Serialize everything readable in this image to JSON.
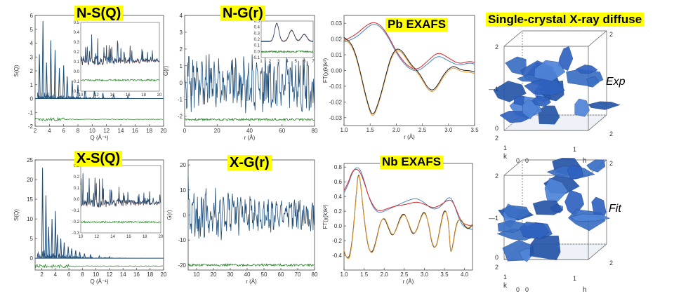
{
  "titles": {
    "nsq": "N-S(Q)",
    "ngr": "N-G(r)",
    "pb": "Pb EXAFS",
    "sc": "Single-crystal X-ray diffuse",
    "xsq": "X-S(Q)",
    "xgr": "X-G(r)",
    "nb": "Nb EXAFS"
  },
  "sc_labels": {
    "exp": "Exp",
    "fit": "Fit"
  },
  "colors": {
    "data": "#1f4e79",
    "fit": "#7a2a1a",
    "diff": "#2e8b2e",
    "red": "#d62728",
    "blue": "#4a86c5",
    "orange": "#e69a2e",
    "black": "#222222",
    "iso": "#3a6fc4",
    "title_bg": "#ffff00"
  },
  "chart_data": [
    {
      "id": "nsq",
      "type": "line",
      "title": "N-S(Q)",
      "xlabel": "Q (Å⁻¹)",
      "ylabel": "S(Q)",
      "xlim": [
        2,
        20
      ],
      "ylim": [
        -2,
        6
      ],
      "xticks": [
        "2",
        "4",
        "6",
        "8",
        "10",
        "12",
        "14",
        "16",
        "18",
        "20"
      ],
      "yticks": [
        "-2",
        "-1",
        "0",
        "1",
        "2",
        "3",
        "4",
        "5",
        "6"
      ],
      "series": [
        {
          "role": "data",
          "peaks": [
            [
              2.6,
              3.2
            ],
            [
              3.1,
              5.6
            ],
            [
              3.6,
              2.6
            ],
            [
              4.2,
              4.2
            ],
            [
              4.8,
              3.5
            ],
            [
              5.4,
              2.2
            ],
            [
              6.0,
              2.4
            ],
            [
              6.5,
              1.6
            ],
            [
              7.2,
              1.3
            ],
            [
              8.0,
              1.0
            ],
            [
              9.0,
              0.8
            ],
            [
              10.3,
              0.6
            ],
            [
              11.5,
              0.4
            ],
            [
              13.0,
              0.3
            ],
            [
              15.0,
              0.2
            ]
          ],
          "baseline": 0
        },
        {
          "role": "diff",
          "offset": -1.5
        }
      ],
      "inset": {
        "xticks": [
          "10",
          "12",
          "14",
          "16",
          "18",
          "20"
        ],
        "yticks": [
          "-0.2",
          "-0.1",
          "0.0",
          "0.1",
          "0.2",
          "0.3",
          "0.4",
          "0.5"
        ],
        "xlim": [
          10,
          20
        ],
        "ylim": [
          -0.2,
          0.5
        ]
      }
    },
    {
      "id": "ngr",
      "type": "line",
      "title": "N-G(r)",
      "xlabel": "r (Å)",
      "ylabel": "G(r)",
      "xlim": [
        0,
        80
      ],
      "ylim": [
        -2.6,
        4
      ],
      "xticks": [
        "0",
        "20",
        "40",
        "60",
        "80"
      ],
      "yticks": [
        "-2",
        "-1",
        "0",
        "1",
        "2",
        "3",
        "4"
      ],
      "series": [
        {
          "role": "data",
          "amplitude": 1.6
        },
        {
          "role": "diff",
          "offset": -2.2
        }
      ],
      "inset": {
        "xticks": [
          "1",
          "2",
          "3",
          "4",
          "5",
          "6",
          "7"
        ],
        "yticks": [
          "-0.1",
          "0.0",
          "0.1",
          "0.2",
          "0.3",
          "0.4",
          "0.5"
        ]
      }
    },
    {
      "id": "pb",
      "type": "line",
      "title": "Pb EXAFS",
      "xlabel": "r (Å)",
      "ylabel": "FT(χ(k)k³)",
      "xlim": [
        1.0,
        3.5
      ],
      "ylim": [
        -0.035,
        0.035
      ],
      "xticks": [
        "1.0",
        "1.5",
        "2.0",
        "2.5",
        "3.0",
        "3.5"
      ],
      "yticks": [
        "-0.03",
        "-0.02",
        "-0.01",
        "0.00",
        "0.01",
        "0.02",
        "0.03"
      ],
      "series": [
        {
          "role": "red",
          "x": [
            1.0,
            1.2,
            1.4,
            1.55,
            1.7,
            1.85,
            2.0,
            2.2,
            2.4,
            2.6,
            2.8,
            3.0,
            3.2,
            3.4,
            3.5
          ],
          "y": [
            0.019,
            0.022,
            0.028,
            0.031,
            0.029,
            0.022,
            0.012,
            0.003,
            0.0,
            0.006,
            0.012,
            0.008,
            0.004,
            0.006,
            0.005
          ]
        },
        {
          "role": "blue",
          "x": [
            1.0,
            1.2,
            1.4,
            1.55,
            1.7,
            1.85,
            2.0,
            2.2,
            2.4,
            2.6,
            2.8,
            3.0,
            3.2,
            3.4,
            3.5
          ],
          "y": [
            0.018,
            0.02,
            0.026,
            0.03,
            0.028,
            0.021,
            0.011,
            0.002,
            -0.001,
            0.004,
            0.01,
            0.006,
            0.003,
            0.005,
            0.004
          ]
        },
        {
          "role": "orange",
          "x": [
            1.0,
            1.1,
            1.2,
            1.3,
            1.4,
            1.5,
            1.55,
            1.6,
            1.7,
            1.8,
            1.9,
            2.0,
            2.1,
            2.2,
            2.3,
            2.4,
            2.5,
            2.6,
            2.7,
            2.8,
            2.9,
            3.0,
            3.1,
            3.2,
            3.3,
            3.4,
            3.5
          ],
          "y": [
            0.02,
            0.018,
            0.012,
            0.0,
            -0.015,
            -0.027,
            -0.029,
            -0.027,
            -0.017,
            -0.004,
            0.008,
            0.013,
            0.012,
            0.007,
            0.002,
            -0.001,
            -0.006,
            -0.012,
            -0.014,
            -0.01,
            -0.004,
            0.0,
            0.002,
            0.0,
            -0.001,
            -0.001,
            -0.002
          ]
        },
        {
          "role": "black",
          "x": [
            1.0,
            1.1,
            1.2,
            1.3,
            1.4,
            1.5,
            1.55,
            1.6,
            1.7,
            1.8,
            1.9,
            2.0,
            2.1,
            2.2,
            2.3,
            2.4,
            2.5,
            2.6,
            2.7,
            2.8,
            2.9,
            3.0,
            3.1,
            3.2,
            3.3,
            3.4,
            3.5
          ],
          "y": [
            0.021,
            0.019,
            0.013,
            0.001,
            -0.014,
            -0.026,
            -0.028,
            -0.026,
            -0.016,
            -0.003,
            0.009,
            0.014,
            0.013,
            0.008,
            0.003,
            0.0,
            -0.005,
            -0.011,
            -0.013,
            -0.009,
            -0.003,
            0.001,
            0.003,
            0.001,
            0.0,
            0.0,
            -0.001
          ]
        }
      ]
    },
    {
      "id": "xsq",
      "type": "line",
      "title": "X-S(Q)",
      "xlabel": "Q (Å⁻¹)",
      "ylabel": "S(Q)",
      "xlim": [
        1,
        20
      ],
      "ylim": [
        -3,
        25
      ],
      "xticks": [
        "2",
        "4",
        "6",
        "8",
        "10",
        "12",
        "14",
        "16",
        "18",
        "20"
      ],
      "yticks": [
        "0",
        "5",
        "10",
        "15",
        "20",
        "25"
      ],
      "series": [
        {
          "role": "data",
          "peaks": [
            [
              2.1,
              23
            ],
            [
              2.6,
              16
            ],
            [
              3.0,
              8
            ],
            [
              3.5,
              10
            ],
            [
              4.0,
              12
            ],
            [
              4.3,
              6
            ],
            [
              4.8,
              5
            ],
            [
              5.3,
              4
            ],
            [
              5.9,
              3
            ],
            [
              6.4,
              2.5
            ],
            [
              7.0,
              2
            ],
            [
              7.6,
              1.6
            ],
            [
              8.3,
              1.2
            ],
            [
              9.2,
              1.0
            ],
            [
              10.5,
              0.6
            ],
            [
              12,
              0.4
            ]
          ],
          "baseline": 0
        },
        {
          "role": "diff",
          "offset": -2
        }
      ],
      "inset": {
        "xticks": [
          "10",
          "12",
          "14",
          "16",
          "18",
          "20"
        ],
        "yticks": [
          "-0.3",
          "-0.2",
          "-0.1",
          "0.0",
          "0.1",
          "0.2",
          "0.3"
        ]
      }
    },
    {
      "id": "xgr",
      "type": "line",
      "title": "X-G(r)",
      "xlabel": "r (Å)",
      "ylabel": "G(r)",
      "xlim": [
        5,
        80
      ],
      "ylim": [
        -22,
        22
      ],
      "xticks": [
        "10",
        "20",
        "30",
        "40",
        "50",
        "60",
        "70",
        "80"
      ],
      "yticks": [
        "-20",
        "-10",
        "0",
        "10",
        "20"
      ],
      "series": [
        {
          "role": "data",
          "amplitude": 14
        },
        {
          "role": "diff",
          "offset": -20
        }
      ]
    },
    {
      "id": "nb",
      "type": "line",
      "title": "Nb EXAFS",
      "xlabel": "r (Å)",
      "ylabel": "FT(χ(k)k²)",
      "xlim": [
        1.0,
        4.2
      ],
      "ylim": [
        -0.6,
        0.85
      ],
      "xticks": [
        "1.0",
        "1.5",
        "2.0",
        "2.5",
        "3.0",
        "3.5",
        "4.0"
      ],
      "yticks": [
        "-0.4",
        "-0.2",
        "0.0",
        "0.2",
        "0.4",
        "0.6",
        "0.8"
      ],
      "series": [
        {
          "role": "blue",
          "x": [
            1.0,
            1.1,
            1.2,
            1.3,
            1.4,
            1.5,
            1.6,
            1.7,
            1.8,
            1.9,
            2.0,
            2.2,
            2.4,
            2.6,
            2.8,
            3.0,
            3.2,
            3.4,
            3.6,
            3.7,
            3.8,
            3.9,
            4.0,
            4.2
          ],
          "y": [
            0.45,
            0.55,
            0.72,
            0.8,
            0.78,
            0.62,
            0.42,
            0.28,
            0.2,
            0.18,
            0.2,
            0.25,
            0.3,
            0.35,
            0.38,
            0.32,
            0.22,
            0.25,
            0.4,
            0.36,
            0.2,
            0.05,
            -0.02,
            -0.05
          ]
        },
        {
          "role": "red",
          "x": [
            1.0,
            1.1,
            1.2,
            1.3,
            1.4,
            1.5,
            1.6,
            1.7,
            1.8,
            1.9,
            2.0,
            2.2,
            2.4,
            2.6,
            2.8,
            3.0,
            3.2,
            3.4,
            3.6,
            3.7,
            3.8,
            3.9,
            4.0,
            4.2
          ],
          "y": [
            0.48,
            0.58,
            0.74,
            0.78,
            0.74,
            0.6,
            0.42,
            0.3,
            0.22,
            0.2,
            0.22,
            0.26,
            0.28,
            0.3,
            0.33,
            0.3,
            0.24,
            0.28,
            0.36,
            0.34,
            0.22,
            0.08,
            0.02,
            0.0
          ]
        },
        {
          "role": "black",
          "x": [
            1.0,
            1.1,
            1.2,
            1.3,
            1.35,
            1.4,
            1.5,
            1.6,
            1.7,
            1.8,
            1.9,
            2.0,
            2.1,
            2.2,
            2.3,
            2.4,
            2.5,
            2.6,
            2.7,
            2.8,
            2.9,
            3.0,
            3.1,
            3.2,
            3.3,
            3.4,
            3.5,
            3.6,
            3.65,
            3.7,
            3.8,
            3.9,
            4.0,
            4.1,
            4.2
          ],
          "y": [
            -0.35,
            -0.5,
            -0.25,
            0.4,
            0.72,
            0.65,
            0.1,
            -0.3,
            -0.38,
            -0.2,
            0.05,
            0.12,
            -0.02,
            -0.15,
            -0.05,
            0.12,
            0.18,
            0.05,
            -0.12,
            -0.08,
            0.1,
            0.22,
            0.05,
            -0.28,
            -0.3,
            0.0,
            0.25,
            0.1,
            -0.38,
            -0.3,
            0.05,
            0.1,
            0.0,
            -0.05,
            0.02
          ]
        },
        {
          "role": "orange",
          "x": [
            1.0,
            1.1,
            1.2,
            1.3,
            1.35,
            1.4,
            1.5,
            1.6,
            1.7,
            1.8,
            1.9,
            2.0,
            2.1,
            2.2,
            2.3,
            2.4,
            2.5,
            2.6,
            2.7,
            2.8,
            2.9,
            3.0,
            3.1,
            3.2,
            3.3,
            3.4,
            3.5,
            3.6,
            3.65,
            3.7,
            3.8,
            3.9,
            4.0,
            4.1,
            4.2
          ],
          "y": [
            -0.33,
            -0.52,
            -0.28,
            0.38,
            0.7,
            0.66,
            0.12,
            -0.28,
            -0.4,
            -0.22,
            0.04,
            0.13,
            0.0,
            -0.14,
            -0.06,
            0.1,
            0.17,
            0.06,
            -0.1,
            -0.09,
            0.09,
            0.2,
            0.06,
            -0.26,
            -0.31,
            -0.02,
            0.23,
            0.12,
            -0.36,
            -0.32,
            0.03,
            0.11,
            0.01,
            -0.04,
            0.03
          ]
        }
      ]
    },
    {
      "id": "sc_exp",
      "type": "isosurface",
      "label": "Exp",
      "axes": {
        "h": [
          "0",
          "1",
          "2"
        ],
        "k": [
          "0",
          "1",
          "2"
        ],
        "l": [
          "0",
          "1",
          "2"
        ]
      },
      "l_label": "—1"
    },
    {
      "id": "sc_fit",
      "type": "isosurface",
      "label": "Fit",
      "axes": {
        "h": [
          "0",
          "1",
          "2"
        ],
        "k": [
          "0",
          "1",
          "2"
        ],
        "l": [
          "0",
          "1",
          "2"
        ]
      },
      "l_label": "—1"
    }
  ]
}
